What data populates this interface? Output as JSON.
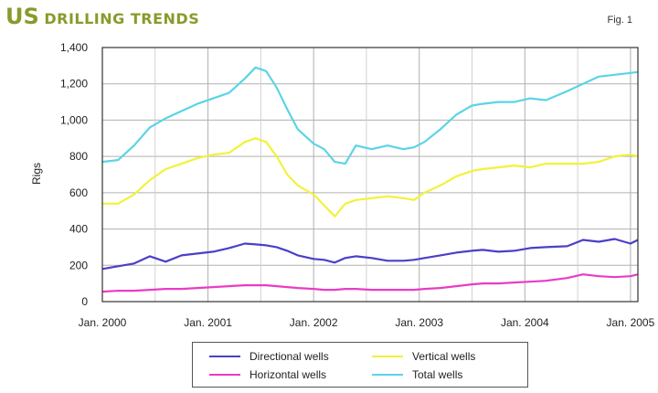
{
  "header": {
    "title_prefix": "US",
    "title_rest": "DRILLING TRENDS",
    "fig_label": "Fig. 1"
  },
  "chart_data": {
    "type": "line",
    "title": "US DRILLING TRENDS",
    "xlabel": "",
    "ylabel": "Rigs",
    "xlim": [
      2000.0,
      2005.07
    ],
    "ylim": [
      0,
      1400
    ],
    "yticks": [
      0,
      200,
      400,
      600,
      800,
      1000,
      1200,
      1400
    ],
    "ytick_labels": [
      "0",
      "200",
      "400",
      "600",
      "800",
      "1,000",
      "1,200",
      "1,400"
    ],
    "xticks": [
      2000,
      2001,
      2002,
      2003,
      2004,
      2005
    ],
    "xtick_labels": [
      "Jan. 2000",
      "Jan. 2001",
      "Jan. 2002",
      "Jan. 2003",
      "Jan. 2004",
      "Jan. 2005"
    ],
    "grid": true,
    "legend_position": "bottom",
    "series": [
      {
        "name": "Total wells",
        "color": "#5bd4e6",
        "x": [
          2000.0,
          2000.15,
          2000.3,
          2000.45,
          2000.6,
          2000.75,
          2000.9,
          2001.05,
          2001.2,
          2001.35,
          2001.45,
          2001.55,
          2001.65,
          2001.75,
          2001.85,
          2002.0,
          2002.1,
          2002.2,
          2002.3,
          2002.4,
          2002.55,
          2002.7,
          2002.85,
          2002.95,
          2003.05,
          2003.2,
          2003.35,
          2003.5,
          2003.6,
          2003.75,
          2003.9,
          2004.05,
          2004.2,
          2004.4,
          2004.55,
          2004.7,
          2004.85,
          2005.0,
          2005.07
        ],
        "values": [
          770,
          780,
          860,
          960,
          1010,
          1050,
          1090,
          1120,
          1150,
          1230,
          1290,
          1270,
          1180,
          1060,
          950,
          870,
          840,
          770,
          760,
          860,
          840,
          860,
          840,
          850,
          880,
          950,
          1030,
          1080,
          1090,
          1100,
          1100,
          1120,
          1110,
          1160,
          1200,
          1240,
          1250,
          1260,
          1265
        ]
      },
      {
        "name": "Vertical wells",
        "color": "#f2f23a",
        "x": [
          2000.0,
          2000.15,
          2000.3,
          2000.45,
          2000.6,
          2000.75,
          2000.9,
          2001.05,
          2001.2,
          2001.35,
          2001.45,
          2001.55,
          2001.65,
          2001.75,
          2001.85,
          2002.0,
          2002.1,
          2002.2,
          2002.3,
          2002.4,
          2002.55,
          2002.7,
          2002.85,
          2002.95,
          2003.05,
          2003.2,
          2003.35,
          2003.5,
          2003.6,
          2003.75,
          2003.9,
          2004.05,
          2004.2,
          2004.4,
          2004.55,
          2004.7,
          2004.85,
          2005.0,
          2005.07
        ],
        "values": [
          540,
          540,
          590,
          670,
          730,
          760,
          790,
          810,
          820,
          880,
          900,
          880,
          800,
          700,
          640,
          590,
          530,
          470,
          540,
          560,
          570,
          580,
          570,
          560,
          600,
          640,
          690,
          720,
          730,
          740,
          750,
          740,
          760,
          760,
          760,
          770,
          800,
          810,
          800
        ]
      },
      {
        "name": "Directional wells",
        "color": "#4b3fc8",
        "x": [
          2000.0,
          2000.15,
          2000.3,
          2000.45,
          2000.6,
          2000.75,
          2000.9,
          2001.05,
          2001.2,
          2001.35,
          2001.45,
          2001.55,
          2001.65,
          2001.75,
          2001.85,
          2002.0,
          2002.1,
          2002.2,
          2002.3,
          2002.4,
          2002.55,
          2002.7,
          2002.85,
          2002.95,
          2003.05,
          2003.2,
          2003.35,
          2003.5,
          2003.6,
          2003.75,
          2003.9,
          2004.05,
          2004.2,
          2004.4,
          2004.55,
          2004.7,
          2004.85,
          2005.0,
          2005.07
        ],
        "values": [
          180,
          195,
          210,
          250,
          220,
          255,
          265,
          275,
          295,
          320,
          315,
          310,
          300,
          280,
          255,
          235,
          230,
          215,
          240,
          250,
          240,
          225,
          225,
          230,
          240,
          255,
          270,
          280,
          285,
          275,
          280,
          295,
          300,
          305,
          340,
          330,
          345,
          320,
          340
        ]
      },
      {
        "name": "Horizontal wells",
        "color": "#e83cc6",
        "x": [
          2000.0,
          2000.15,
          2000.3,
          2000.45,
          2000.6,
          2000.75,
          2000.9,
          2001.05,
          2001.2,
          2001.35,
          2001.45,
          2001.55,
          2001.65,
          2001.75,
          2001.85,
          2002.0,
          2002.1,
          2002.2,
          2002.3,
          2002.4,
          2002.55,
          2002.7,
          2002.85,
          2002.95,
          2003.05,
          2003.2,
          2003.35,
          2003.5,
          2003.6,
          2003.75,
          2003.9,
          2004.05,
          2004.2,
          2004.4,
          2004.55,
          2004.7,
          2004.85,
          2005.0,
          2005.07
        ],
        "values": [
          55,
          60,
          60,
          65,
          70,
          70,
          75,
          80,
          85,
          90,
          90,
          90,
          85,
          80,
          75,
          70,
          65,
          65,
          70,
          70,
          65,
          65,
          65,
          65,
          70,
          75,
          85,
          95,
          100,
          100,
          105,
          110,
          115,
          130,
          150,
          140,
          135,
          140,
          150
        ]
      }
    ],
    "legend": [
      {
        "name": "Directional wells",
        "color": "#4b3fc8"
      },
      {
        "name": "Vertical wells",
        "color": "#f2f23a"
      },
      {
        "name": "Horizontal wells",
        "color": "#e83cc6"
      },
      {
        "name": "Total wells",
        "color": "#5bd4e6"
      }
    ]
  }
}
